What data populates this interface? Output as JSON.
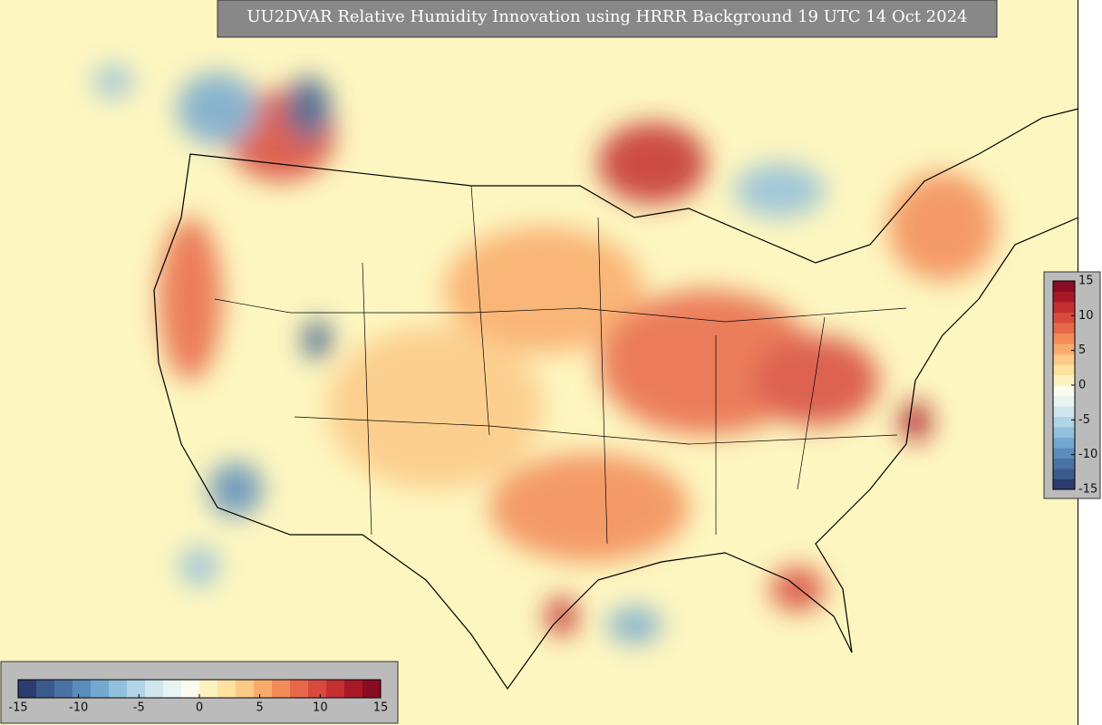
{
  "title": "UU2DVAR Relative Humidity Innovation using HRRR Background 19 UTC 14 Oct 2024",
  "colorbar_horizontal": {
    "range": [
      -15,
      15
    ],
    "ticks": [
      -15,
      -10,
      -5,
      0,
      5,
      10,
      15
    ]
  },
  "colorbar_vertical": {
    "range": [
      -15,
      15
    ],
    "ticks": [
      15,
      10,
      5,
      0,
      -5,
      -10,
      -15
    ]
  },
  "colors": [
    "#2c3c6e",
    "#3b5a8c",
    "#4a72a4",
    "#5b8cbc",
    "#74a8d0",
    "#92c0dc",
    "#b1d4e6",
    "#cfe6ef",
    "#e8f4f2",
    "#fbfbee",
    "#fdf1c0",
    "#fde2a0",
    "#fcc986",
    "#f9ab6c",
    "#f38b58",
    "#e8694a",
    "#d84a3c",
    "#c42f30",
    "#a81826",
    "#8a0c22"
  ]
}
